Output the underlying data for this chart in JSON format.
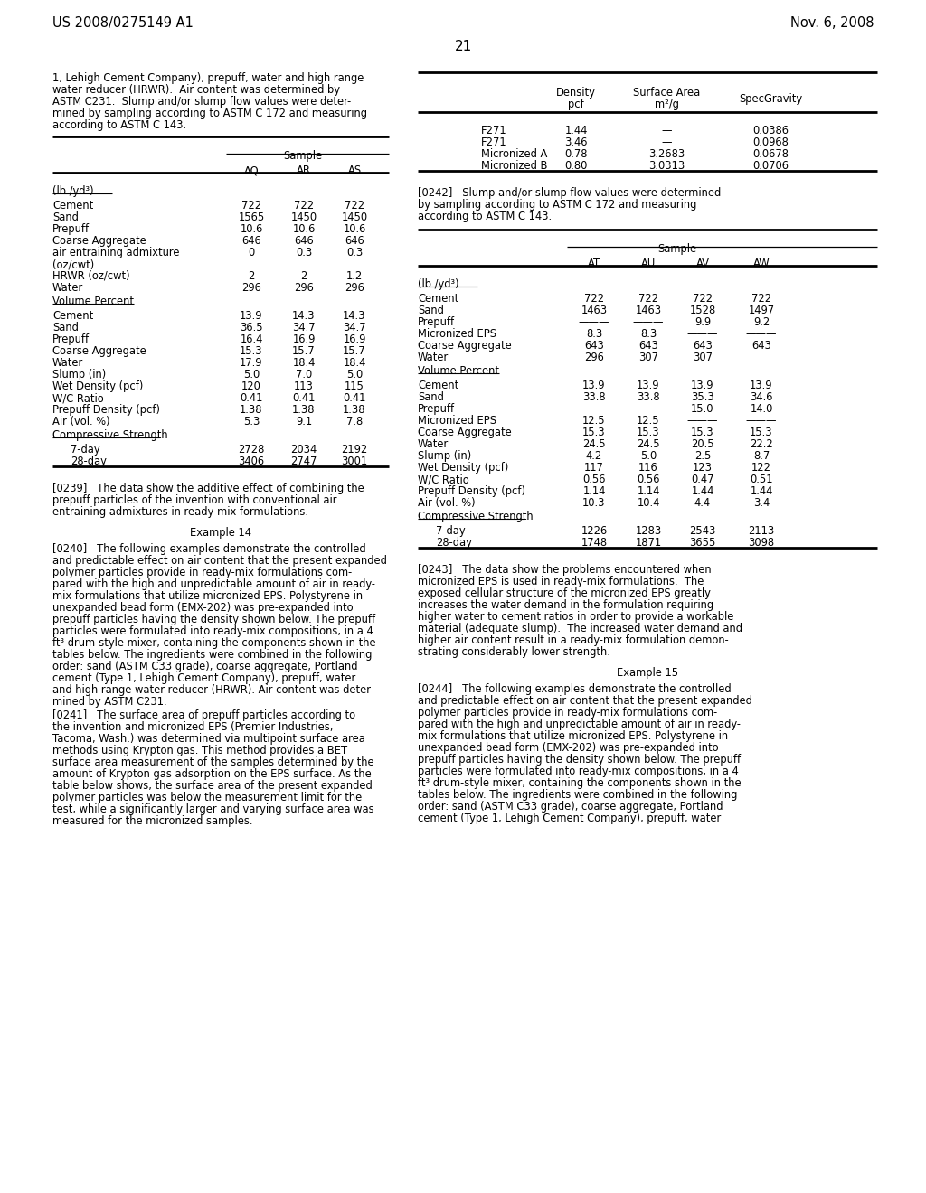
{
  "page_header_left": "US 2008/0275149 A1",
  "page_header_right": "Nov. 6, 2008",
  "page_number": "21",
  "bg_color": "#ffffff",
  "left_col_intro": "1, Lehigh Cement Company), prepuff, water and high range\nwater reducer (HRWR).  Air content was determined by\nASTM C231.  Slump and/or slump flow values were deter-\nmined by sampling according to ASTM C 172 and measuring\naccording to ASTM C 143.",
  "table1_section1": [
    [
      "Cement",
      "722",
      "722",
      "722"
    ],
    [
      "Sand",
      "1565",
      "1450",
      "1450"
    ],
    [
      "Prepuff",
      "10.6",
      "10.6",
      "10.6"
    ],
    [
      "Coarse Aggregate",
      "646",
      "646",
      "646"
    ],
    [
      "air entraining admixture",
      "0",
      "0.3",
      "0.3"
    ],
    [
      "(oz/cwt)",
      "",
      "",
      ""
    ],
    [
      "HRWR (oz/cwt)",
      "2",
      "2",
      "1.2"
    ],
    [
      "Water",
      "296",
      "296",
      "296"
    ]
  ],
  "table1_section2": [
    [
      "Cement",
      "13.9",
      "14.3",
      "14.3"
    ],
    [
      "Sand",
      "36.5",
      "34.7",
      "34.7"
    ],
    [
      "Prepuff",
      "16.4",
      "16.9",
      "16.9"
    ],
    [
      "Coarse Aggregate",
      "15.3",
      "15.7",
      "15.7"
    ],
    [
      "Water",
      "17.9",
      "18.4",
      "18.4"
    ],
    [
      "Slump (in)",
      "5.0",
      "7.0",
      "5.0"
    ],
    [
      "Wet Density (pcf)",
      "120",
      "113",
      "115"
    ],
    [
      "W/C Ratio",
      "0.41",
      "0.41",
      "0.41"
    ],
    [
      "Prepuff Density (pcf)",
      "1.38",
      "1.38",
      "1.38"
    ],
    [
      "Air (vol. %)",
      "5.3",
      "9.1",
      "7.8"
    ]
  ],
  "table1_section3": [
    [
      "7-day",
      "2728",
      "2034",
      "2192"
    ],
    [
      "28-day",
      "3406",
      "2747",
      "3001"
    ]
  ],
  "table2_rows": [
    [
      "F271",
      "1.44",
      "—",
      "0.0386"
    ],
    [
      "F271",
      "3.46",
      "—",
      "0.0968"
    ],
    [
      "Micronized A",
      "0.78",
      "3.2683",
      "0.0678"
    ],
    [
      "Micronized B",
      "0.80",
      "3.0313",
      "0.0706"
    ]
  ],
  "table3_section1": [
    [
      "Cement",
      "722",
      "722",
      "722",
      "722"
    ],
    [
      "Sand",
      "1463",
      "1463",
      "1528",
      "1497"
    ],
    [
      "Prepuff",
      "———",
      "———",
      "9.9",
      "9.2"
    ],
    [
      "Micronized EPS",
      "8.3",
      "8.3",
      "———",
      "———"
    ],
    [
      "Coarse Aggregate",
      "643",
      "643",
      "643",
      "643"
    ],
    [
      "Water",
      "296",
      "307",
      "307",
      ""
    ]
  ],
  "table3_section2": [
    [
      "Cement",
      "13.9",
      "13.9",
      "13.9",
      "13.9"
    ],
    [
      "Sand",
      "33.8",
      "33.8",
      "35.3",
      "34.6"
    ],
    [
      "Prepuff",
      "—",
      "—",
      "15.0",
      "14.0"
    ],
    [
      "Micronized EPS",
      "12.5",
      "12.5",
      "———",
      "———"
    ],
    [
      "Coarse Aggregate",
      "15.3",
      "15.3",
      "15.3",
      "15.3"
    ],
    [
      "Water",
      "24.5",
      "24.5",
      "20.5",
      "22.2"
    ],
    [
      "Slump (in)",
      "4.2",
      "5.0",
      "2.5",
      "8.7"
    ],
    [
      "Wet Density (pcf)",
      "117",
      "116",
      "123",
      "122"
    ],
    [
      "W/C Ratio",
      "0.56",
      "0.56",
      "0.47",
      "0.51"
    ],
    [
      "Prepuff Density (pcf)",
      "1.14",
      "1.14",
      "1.44",
      "1.44"
    ],
    [
      "Air (vol. %)",
      "10.3",
      "10.4",
      "4.4",
      "3.4"
    ]
  ],
  "table3_section3": [
    [
      "7-day",
      "1226",
      "1283",
      "2543",
      "2113"
    ],
    [
      "28-day",
      "1748",
      "1871",
      "3655",
      "3098"
    ]
  ]
}
